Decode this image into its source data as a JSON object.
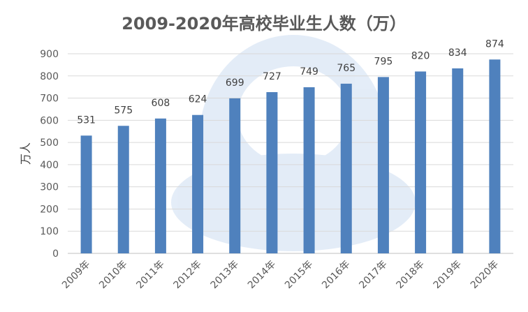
{
  "chart_data": {
    "type": "bar",
    "title": "2009-2020年高校毕业生人数（万）",
    "ylabel": "万人",
    "xlabel": "",
    "ylim": [
      0,
      900
    ],
    "yticks": [
      0,
      100,
      200,
      300,
      400,
      500,
      600,
      700,
      800,
      900
    ],
    "grid": true,
    "categories": [
      "2009年",
      "2010年",
      "2011年",
      "2012年",
      "2013年",
      "2014年",
      "2015年",
      "2016年",
      "2017年",
      "2018年",
      "2019年",
      "2020年"
    ],
    "values": [
      531,
      575,
      608,
      624,
      699,
      727,
      749,
      765,
      795,
      820,
      834,
      874
    ],
    "bar_color": "#4F81BD"
  }
}
